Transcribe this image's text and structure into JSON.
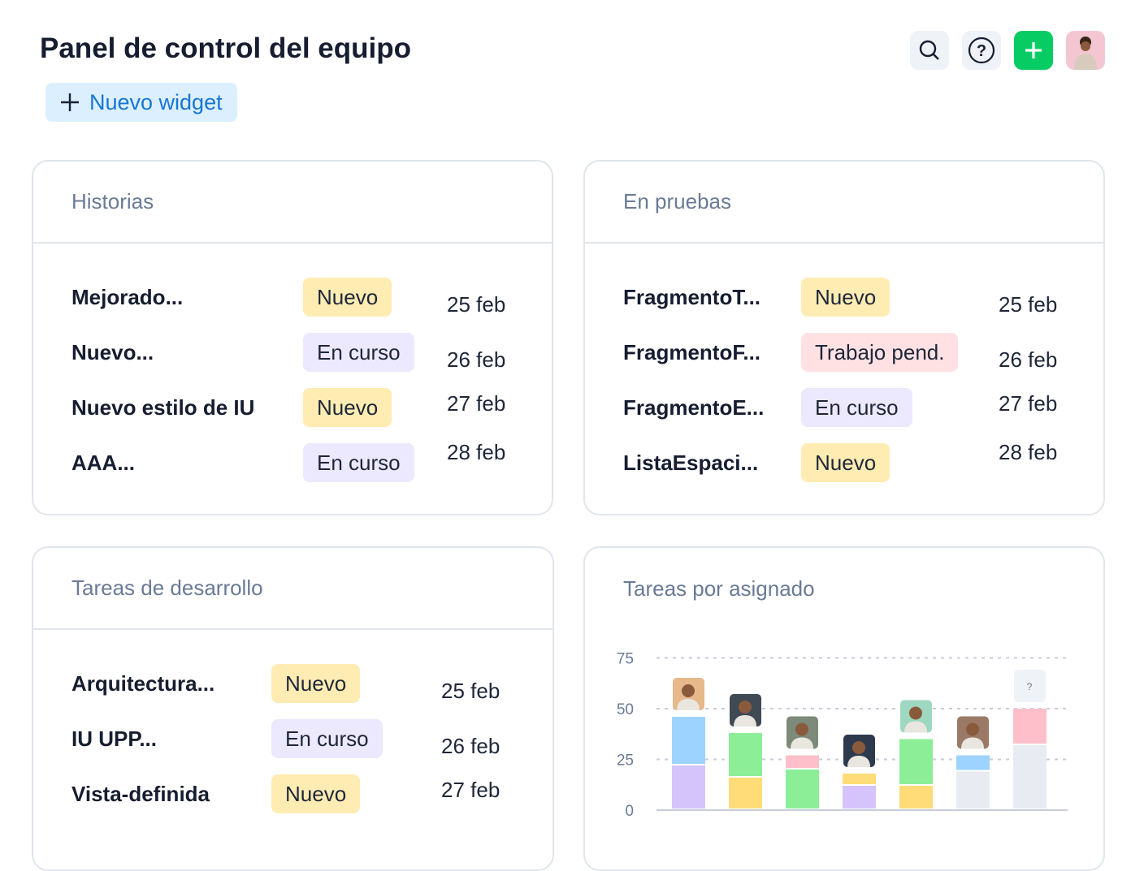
{
  "header": {
    "title": "Panel de control del equipo",
    "new_widget_label": "Nuevo widget",
    "icons": [
      "search-icon",
      "help-icon",
      "plus-icon",
      "user-avatar"
    ],
    "accent": "#06cc63"
  },
  "status_colors": {
    "Nuevo": "#ffecb3",
    "En curso": "#ece8fd",
    "Trabajo pend.": "#ffe1e3"
  },
  "cards": [
    {
      "title": "Historias",
      "rows": [
        {
          "name": "Mejorado...",
          "status": "Nuevo",
          "date": "25 feb"
        },
        {
          "name": "Nuevo...",
          "status": "En curso",
          "date": "26 feb"
        },
        {
          "name": "Nuevo estilo de IU",
          "status": "Nuevo",
          "date": "27 feb"
        },
        {
          "name": "AAA...",
          "status": "En curso",
          "date": "28 feb"
        }
      ]
    },
    {
      "title": "En pruebas",
      "rows": [
        {
          "name": "FragmentoT...",
          "status": "Nuevo",
          "date": "25 feb"
        },
        {
          "name": "FragmentoF...",
          "status": "Trabajo pend.",
          "date": "26 feb"
        },
        {
          "name": "FragmentoE...",
          "status": "En curso",
          "date": "27 feb"
        },
        {
          "name": "ListaEspaci...",
          "status": "Nuevo",
          "date": "28 feb"
        }
      ]
    },
    {
      "title": "Tareas de desarrollo",
      "rows": [
        {
          "name": "Arquitectura...",
          "status": "Nuevo",
          "date": "25 feb"
        },
        {
          "name": "IU UPP...",
          "status": "En curso",
          "date": "26 feb"
        },
        {
          "name": "Vista-definida",
          "status": "Nuevo",
          "date": "27 feb"
        }
      ]
    },
    {
      "title": "Tareas por asignado"
    }
  ],
  "chart_data": {
    "type": "bar",
    "stacked": true,
    "ylim": [
      0,
      75
    ],
    "yticks": [
      "0",
      "25",
      "50",
      "75"
    ],
    "grid": "dashed horizontal",
    "categories": [
      "assignee-1",
      "assignee-2",
      "assignee-3",
      "assignee-4",
      "assignee-5",
      "assignee-6",
      "unassigned"
    ],
    "unassigned_label": "?",
    "bars": [
      [
        {
          "value": 22,
          "color": "#d4c4fb"
        },
        {
          "value": 24,
          "color": "#9dd3ff"
        }
      ],
      [
        {
          "value": 16,
          "color": "#ffdc78"
        },
        {
          "value": 22,
          "color": "#8cef98"
        }
      ],
      [
        {
          "value": 20,
          "color": "#8cef98"
        },
        {
          "value": 7,
          "color": "#ffbfca"
        }
      ],
      [
        {
          "value": 12,
          "color": "#d4c4fb"
        },
        {
          "value": 6,
          "color": "#ffdc78"
        }
      ],
      [
        {
          "value": 12,
          "color": "#ffdc78"
        },
        {
          "value": 23,
          "color": "#8cef98"
        }
      ],
      [
        {
          "value": 19,
          "color": "#e8ebf2"
        },
        {
          "value": 8,
          "color": "#9dd3ff"
        }
      ],
      [
        {
          "value": 32,
          "color": "#e8ebf2"
        },
        {
          "value": 18,
          "color": "#ffbfca"
        }
      ]
    ],
    "avatar_colors": [
      "#e6b88a",
      "#3f4a55",
      "#7d8a7a",
      "#2d3a4d",
      "#9fd8c0",
      "#9a7a66",
      "#eff2f7"
    ]
  }
}
